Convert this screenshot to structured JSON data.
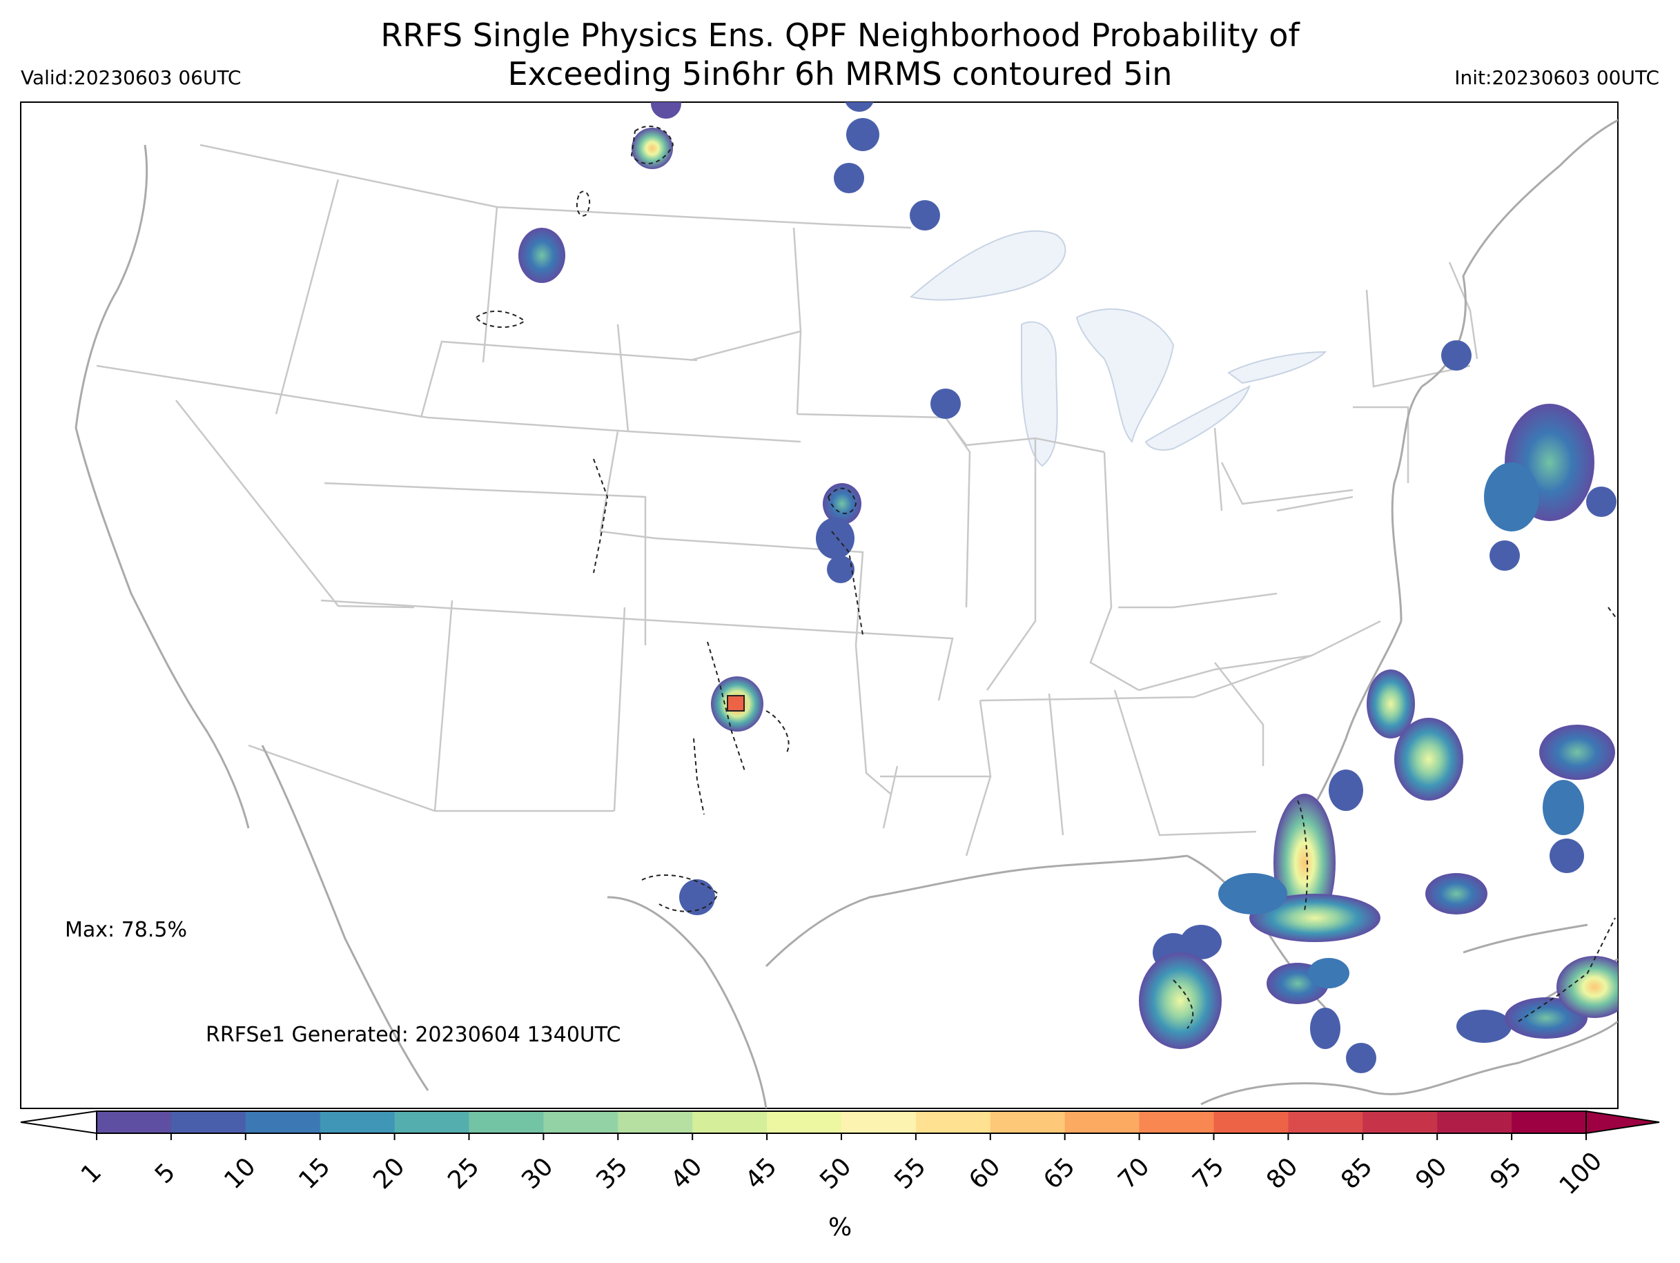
{
  "title_line1": "RRFS Single Physics Ens. QPF Neighborhood Probability of",
  "title_line2": "Exceeding 5in6hr 6h MRMS contoured 5in",
  "valid_label": "Valid:20230603 06UTC",
  "init_label": "Init:20230603 00UTC",
  "max_label": "Max: 78.5%",
  "generated_label": "RRFSe1 Generated: 20230604 1340UTC",
  "colorbar": {
    "units": "%",
    "ticks": [
      "1",
      "5",
      "10",
      "15",
      "20",
      "25",
      "30",
      "35",
      "40",
      "45",
      "50",
      "55",
      "60",
      "65",
      "70",
      "75",
      "80",
      "85",
      "90",
      "95",
      "100"
    ],
    "colors": [
      "#5e4fa2",
      "#4a5fab",
      "#3c78b4",
      "#3f96b7",
      "#54aead",
      "#73c3a5",
      "#93d2a4",
      "#b5e0a2",
      "#d5ee9a",
      "#edf7a2",
      "#fdf3b0",
      "#fee291",
      "#fdc877",
      "#fca962",
      "#f88752",
      "#ed6346",
      "#db4b4b",
      "#c7344a",
      "#b01e48",
      "#9e0142"
    ],
    "min_color": "#ffffff",
    "max_color": "#9e0142"
  },
  "map_colors": {
    "lakes": "#eef3fa",
    "borders": "#c8c8c8",
    "coast": "#aaaaaa",
    "mrms_contour": "#222222"
  }
}
